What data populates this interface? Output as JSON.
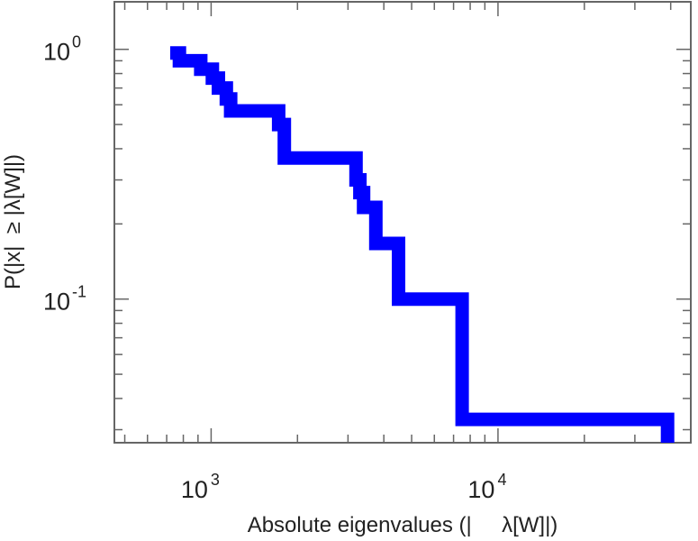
{
  "chart_data": {
    "type": "line",
    "step": true,
    "title": "",
    "xlabel": "Absolute eigenvalues (|     λ[W]|)",
    "ylabel": "P(|x|  ≥ |λ[W]|)",
    "xscale": "log",
    "yscale": "log",
    "xlim": [
      460,
      47000
    ],
    "ylim": [
      0.0266,
      1.55
    ],
    "grid": false,
    "legend": "none",
    "x_ticks": [
      {
        "value": 1000,
        "base": "10",
        "exp": "3"
      },
      {
        "value": 10000,
        "base": "10",
        "exp": "4"
      }
    ],
    "y_ticks": [
      {
        "value": 1,
        "base": "10",
        "exp": "0"
      },
      {
        "value": 0.1,
        "base": "10",
        "exp": "-1"
      }
    ],
    "series": [
      {
        "color": "#0000ff",
        "x": [
          720,
          775,
          920,
          1010,
          1060,
          1130,
          1170,
          1720,
          1800,
          3200,
          3300,
          3400,
          3750,
          4500,
          7500,
          39000
        ],
        "y": [
          0.967,
          0.9,
          0.833,
          0.767,
          0.7,
          0.633,
          0.567,
          0.5,
          0.367,
          0.3,
          0.267,
          0.233,
          0.167,
          0.1,
          0.033,
          0.0266
        ]
      }
    ],
    "line_color": "#0000ff"
  }
}
